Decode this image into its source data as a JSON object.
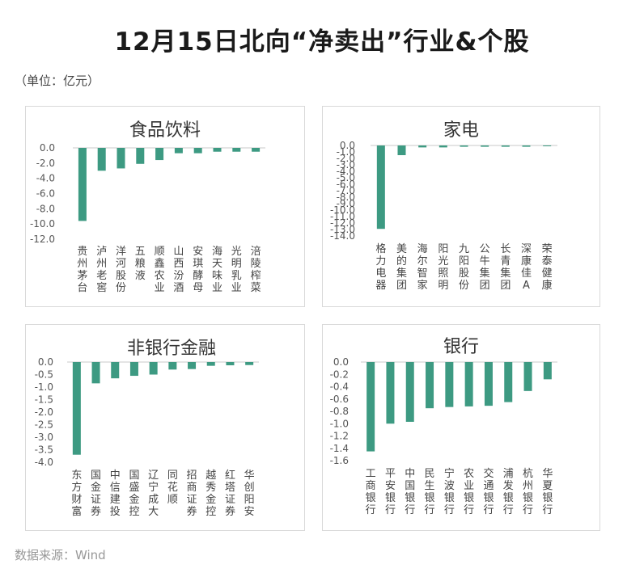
{
  "header": {
    "title": "12月15日北向“净卖出”行业&个股",
    "unit": "（单位：亿元）"
  },
  "footer": {
    "source": "数据来源：Wind"
  },
  "colors": {
    "bar": "#3d9a82",
    "axis": "#c8c8c8",
    "panel_border": "#d9d9d9"
  },
  "chart_data": [
    {
      "type": "bar",
      "title": "食品饮料",
      "categories": [
        "贵州茅台",
        "泸州老窖",
        "洋河股份",
        "五粮液",
        "顺鑫农业",
        "山西汾酒",
        "安琪酵母",
        "海天味业",
        "光明乳业",
        "涪陵榨菜"
      ],
      "values": [
        -9.6,
        -3.0,
        -2.7,
        -2.1,
        -1.6,
        -0.7,
        -0.7,
        -0.5,
        -0.5,
        -0.5
      ],
      "ylim": [
        -12,
        0
      ],
      "yticks": [
        0,
        -2,
        -4,
        -6,
        -8,
        -10,
        -12
      ],
      "ytick_labels": [
        "0.0",
        "-2.0",
        "-4.0",
        "-6.0",
        "-8.0",
        "-10.0",
        "-12.0"
      ],
      "xlabel": "",
      "ylabel": "",
      "grid": false
    },
    {
      "type": "bar",
      "title": "家电",
      "categories": [
        "格力电器",
        "美的集团",
        "海尔智家",
        "阳光照明",
        "九阳股份",
        "公牛集团",
        "长青集团",
        "深康佳A",
        "荣泰健康"
      ],
      "values": [
        -12.9,
        -1.5,
        -0.3,
        -0.3,
        -0.2,
        -0.2,
        -0.2,
        -0.2,
        -0.1
      ],
      "ylim": [
        -14,
        0
      ],
      "yticks": [
        0,
        -1,
        -2,
        -3,
        -4,
        -5,
        -6,
        -7,
        -8,
        -9,
        -10,
        -11,
        -12,
        -13,
        -14
      ],
      "ytick_labels": [
        "0.0",
        "-1.0",
        "-2.0",
        "-3.0",
        "-4.0",
        "-5.0",
        "-6.0",
        "-7.0",
        "-8.0",
        "-9.0",
        "-10.0",
        "-11.0",
        "-12.0",
        "-13.0",
        "-14.0"
      ],
      "xlabel": "",
      "ylabel": "",
      "grid": false
    },
    {
      "type": "bar",
      "title": "非银行金融",
      "categories": [
        "东方财富",
        "国金证券",
        "中信建投",
        "国盛金控",
        "辽宁成大",
        "同花顺",
        "招商证券",
        "越秀金控",
        "红塔证券",
        "华创阳安"
      ],
      "values": [
        -3.7,
        -0.85,
        -0.65,
        -0.55,
        -0.5,
        -0.3,
        -0.28,
        -0.15,
        -0.13,
        -0.12
      ],
      "ylim": [
        -4,
        0
      ],
      "yticks": [
        0,
        -0.5,
        -1,
        -1.5,
        -2,
        -2.5,
        -3,
        -3.5,
        -4
      ],
      "ytick_labels": [
        "0.0",
        "-0.5",
        "-1.0",
        "-1.5",
        "-2.0",
        "-2.5",
        "-3.0",
        "-3.5",
        "-4.0"
      ],
      "xlabel": "",
      "ylabel": "",
      "grid": false
    },
    {
      "type": "bar",
      "title": "银行",
      "categories": [
        "工商银行",
        "平安银行",
        "中国银行",
        "民生银行",
        "宁波银行",
        "农业银行",
        "交通银行",
        "浦发银行",
        "杭州银行",
        "华夏银行"
      ],
      "values": [
        -1.45,
        -1.0,
        -0.97,
        -0.75,
        -0.73,
        -0.72,
        -0.71,
        -0.65,
        -0.47,
        -0.28
      ],
      "ylim": [
        -1.6,
        0
      ],
      "yticks": [
        0,
        -0.2,
        -0.4,
        -0.6,
        -0.8,
        -1.0,
        -1.2,
        -1.4,
        -1.6
      ],
      "ytick_labels": [
        "0.0",
        "-0.2",
        "-0.4",
        "-0.6",
        "-0.8",
        "-1.0",
        "-1.2",
        "-1.4",
        "-1.6"
      ],
      "xlabel": "",
      "ylabel": "",
      "grid": false
    }
  ]
}
